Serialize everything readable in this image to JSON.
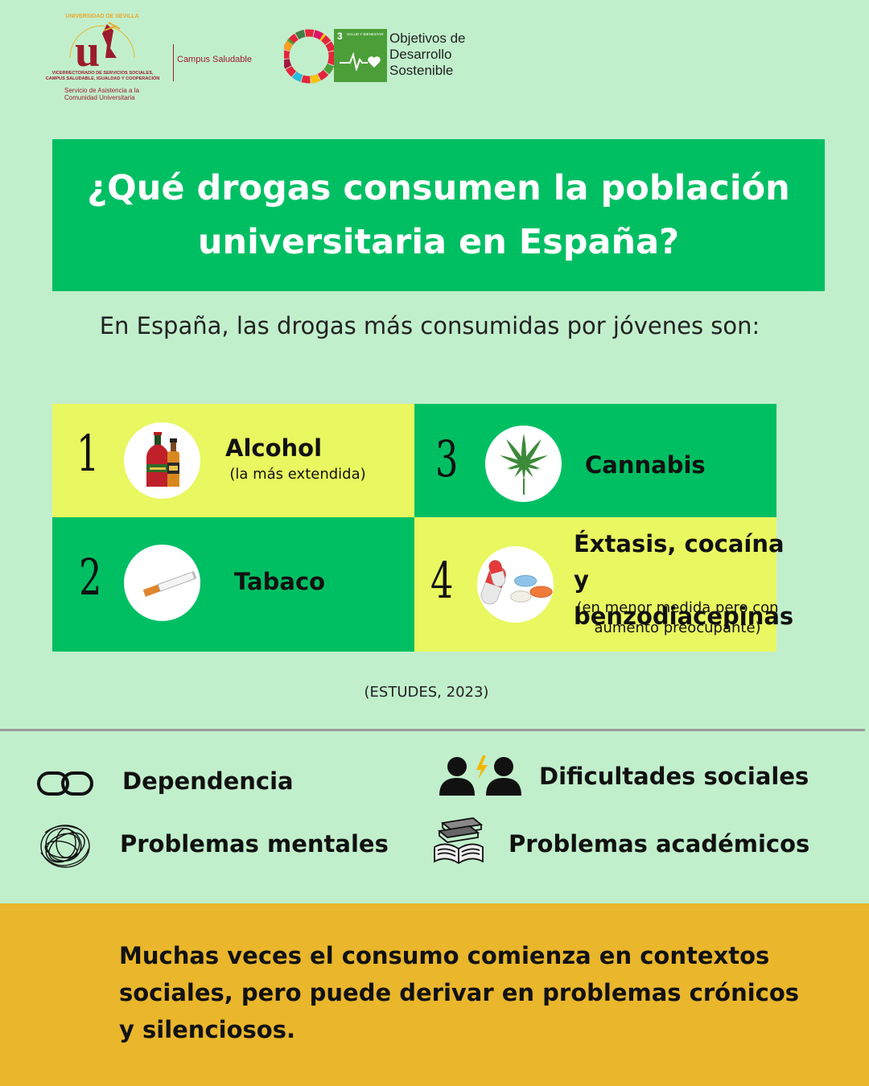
{
  "header": {
    "university_line1": "VICERRECTORADO DE SERVICIOS SOCIALES,",
    "university_line2": "CAMPUS SALUDABLE, IGUALDAD Y COOPERACIÓN",
    "university_service": "Servicio de Asistencia a la Comunidad Universitaria",
    "campus_label": "Campus Saludable",
    "sdg_number": "3",
    "sdg_label": "SALUD Y BIENESTAR",
    "ods_text": "Objetivos de Desarrollo Sostenible"
  },
  "title": "¿Qué drogas consumen la población universitaria en España?",
  "subtitle": "En España, las drogas más consumidas por jóvenes son:",
  "drugs": [
    {
      "rank": "1",
      "name": "Alcohol",
      "note": "(la más extendida)",
      "icon": "alcohol-bottles-icon"
    },
    {
      "rank": "2",
      "name": "Tabaco",
      "note": "",
      "icon": "cigarette-icon"
    },
    {
      "rank": "3",
      "name": "Cannabis",
      "note": "",
      "icon": "cannabis-leaf-icon"
    },
    {
      "rank": "4",
      "name": "Éxtasis, cocaína y benzodiacepinas",
      "name_line1": "Éxtasis, cocaína y",
      "name_line2": "benzodiacepinas",
      "note": "(en menor medida pero con aumento preocupante)",
      "note_line1": "(en menor medida pero con",
      "note_line2": "aumento preocupante)",
      "icon": "pills-icon"
    }
  ],
  "colors": {
    "background": "#c1efcc",
    "green": "#00bf63",
    "yellow": "#e9f760",
    "footer": "#e9b62c"
  },
  "source": "(ESTUDES, 2023)",
  "consequences": [
    {
      "label": "Dependencia",
      "icon": "chain-link-icon"
    },
    {
      "label": "Dificultades sociales",
      "icon": "people-conflict-icon"
    },
    {
      "label": "Problemas mentales",
      "icon": "tangled-scribble-icon"
    },
    {
      "label": "Problemas académicos",
      "icon": "books-icon"
    }
  ],
  "footer_text": "Muchas veces el consumo comienza en contextos sociales, pero puede derivar en problemas crónicos y silenciosos."
}
